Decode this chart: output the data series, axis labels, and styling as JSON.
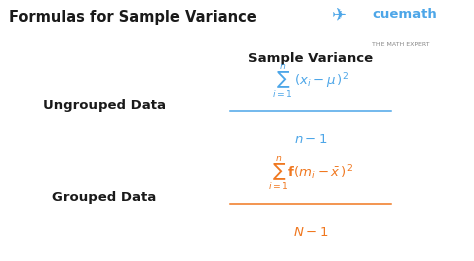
{
  "title": "Formulas for Sample Variance",
  "title_fontsize": 10.5,
  "title_color": "#1a1a1a",
  "background_color": "#ffffff",
  "section_header": "Sample Variance",
  "section_header_color": "#1a1a1a",
  "section_header_fontsize": 9.5,
  "label1": "Ungrouped Data",
  "label2": "Grouped Data",
  "label_color": "#1a1a1a",
  "label_fontsize": 9.5,
  "formula_color_blue": "#4da6e8",
  "formula_color_orange": "#f07820",
  "cuemath_text": "cuemath",
  "cuemath_sub": "THE MATH EXPERT",
  "cuemath_color": "#4da6e8",
  "cuemath_sub_color": "#888888",
  "cuemath_orange": "#f5a623",
  "ungrouped_numerator": "$\\sum_{i=1}^{n}\\,(x_i - \\mu\\,)^2$",
  "ungrouped_denominator": "$n - 1$",
  "grouped_numerator": "$\\sum_{i=1}^{n}\\mathbf{f}(m_i - \\bar{x}\\,)^2$",
  "grouped_denominator": "$N - 1$"
}
